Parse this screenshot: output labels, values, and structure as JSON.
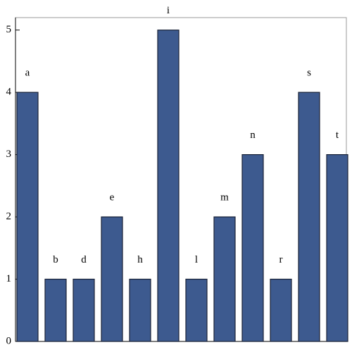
{
  "chart_data": {
    "type": "bar",
    "categories": [
      "a",
      "b",
      "d",
      "e",
      "h",
      "i",
      "l",
      "m",
      "n",
      "r",
      "s",
      "t"
    ],
    "values": [
      4,
      1,
      1,
      2,
      1,
      5,
      1,
      2,
      3,
      1,
      4,
      3
    ],
    "color": "#3d5a8f",
    "ylim": [
      0,
      5.2
    ],
    "yticks": [
      0,
      1,
      2,
      3,
      4,
      5
    ],
    "grid": false
  }
}
